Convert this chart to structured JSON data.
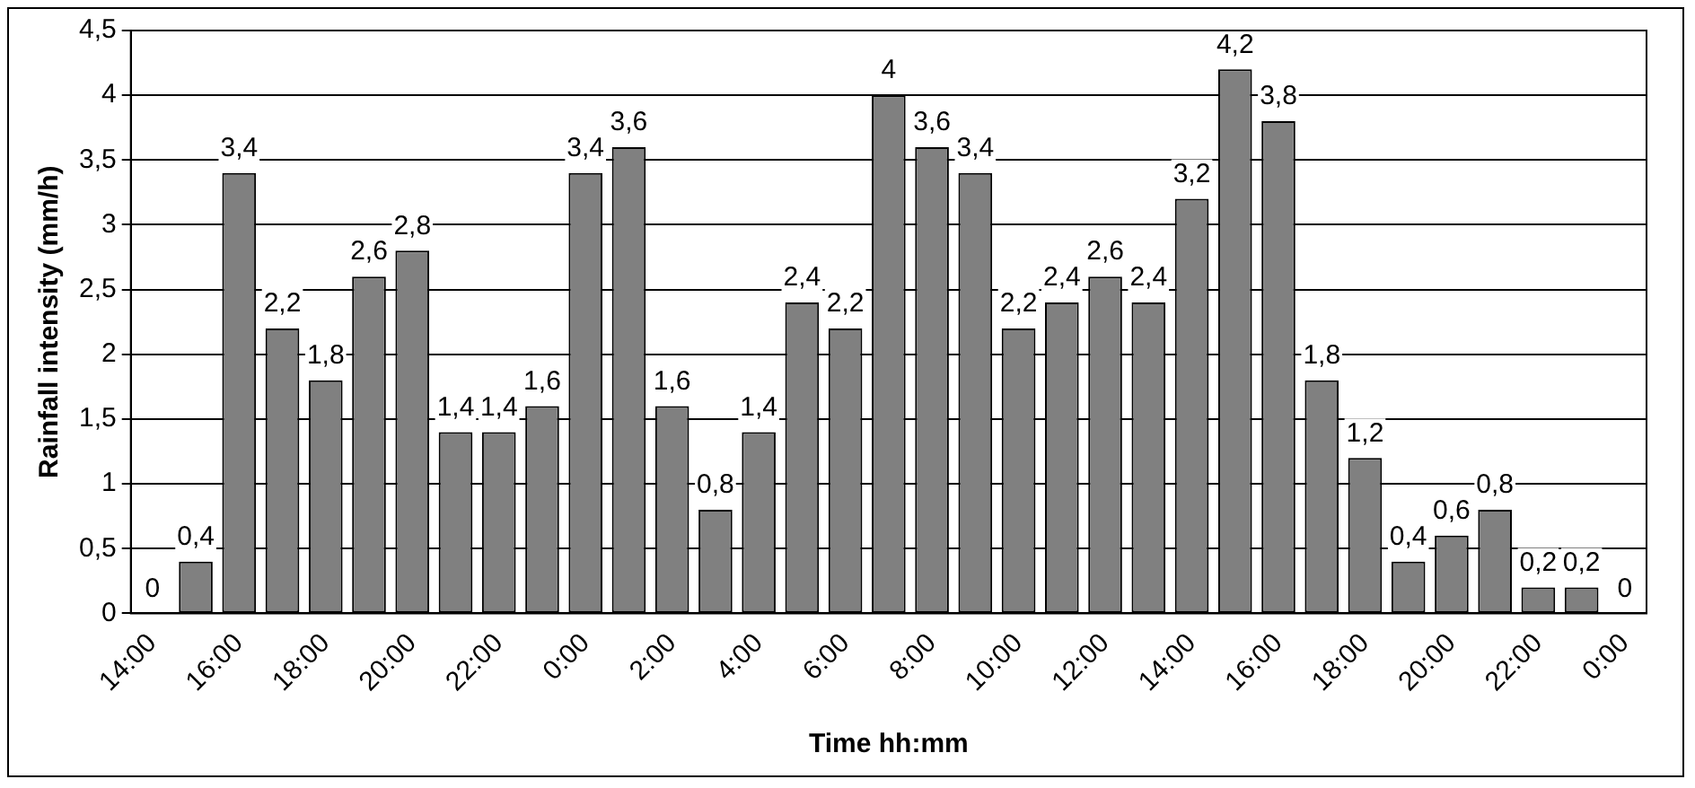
{
  "chart_data": {
    "type": "bar",
    "xlabel": "Time hh:mm",
    "ylabel": "Rainfall intensity (mm/h)",
    "categories": [
      "14:00",
      null,
      "16:00",
      null,
      "18:00",
      null,
      "20:00",
      null,
      "22:00",
      null,
      "0:00",
      null,
      "2:00",
      null,
      "4:00",
      null,
      "6:00",
      null,
      "8:00",
      null,
      "10:00",
      null,
      "12:00",
      null,
      "14:00",
      null,
      "16:00",
      null,
      "18:00",
      null,
      "20:00",
      null,
      "22:00",
      null,
      "0:00"
    ],
    "values": [
      0,
      0.4,
      3.4,
      2.2,
      1.8,
      2.6,
      2.8,
      1.4,
      1.4,
      1.6,
      3.4,
      3.6,
      1.6,
      0.8,
      1.4,
      2.4,
      2.2,
      4,
      3.6,
      3.4,
      2.2,
      2.4,
      2.6,
      2.4,
      3.2,
      4.2,
      3.8,
      1.8,
      1.2,
      0.4,
      0.6,
      0.8,
      0.2,
      0.2,
      0
    ],
    "value_labels": [
      "0",
      "0,4",
      "3,4",
      "2,2",
      "1,8",
      "2,6",
      "2,8",
      "1,4",
      "1,4",
      "1,6",
      "3,4",
      "3,6",
      "1,6",
      "0,8",
      "1,4",
      "2,4",
      "2,2",
      "4",
      "3,6",
      "3,4",
      "2,2",
      "2,4",
      "2,6",
      "2,4",
      "3,2",
      "4,2",
      "3,8",
      "1,8",
      "1,2",
      "0,4",
      "0,6",
      "0,8",
      "0,2",
      "0,2",
      "0"
    ],
    "color": "#808080",
    "ylim": [
      0,
      4.5
    ],
    "yticks": [
      0,
      {
        "value": 0.5,
        "label": "0,5"
      },
      1,
      {
        "value": 1.5,
        "label": "1,5"
      },
      2,
      {
        "value": 2.5,
        "label": "2,5"
      },
      3,
      {
        "value": 3.5,
        "label": "3,5"
      },
      4,
      {
        "value": 4.5,
        "label": "4,5"
      }
    ],
    "grid": "y"
  }
}
